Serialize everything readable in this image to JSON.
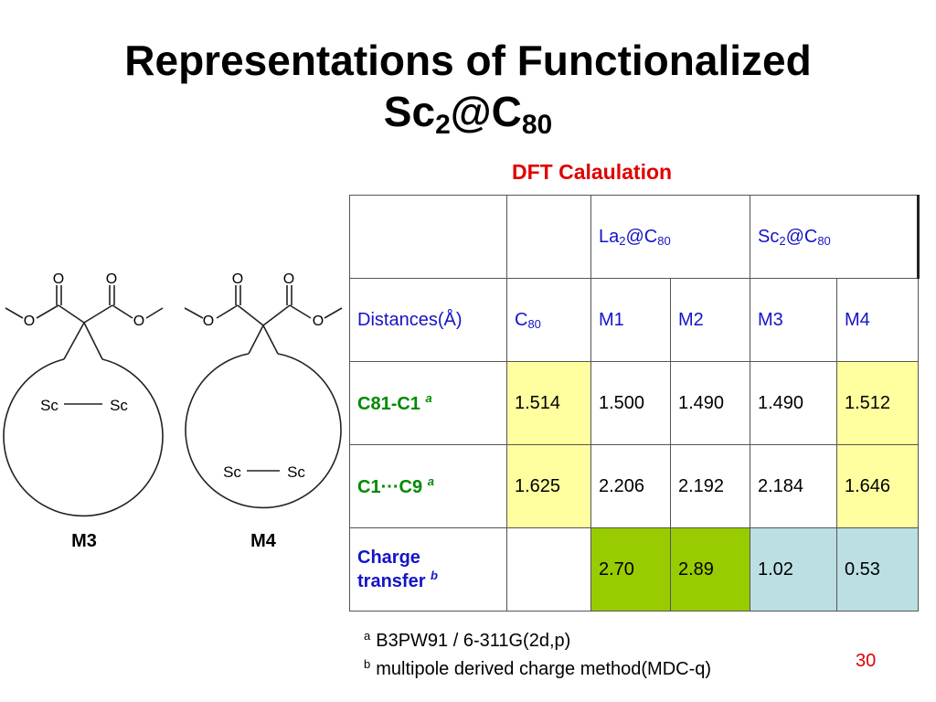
{
  "title": {
    "line1": "Representations of Functionalized",
    "line2_main": "Sc",
    "line2_sub1": "2",
    "line2_mid": "@C",
    "line2_sub2": "80"
  },
  "subtitle": "DFT Calaulation",
  "table": {
    "header_row": {
      "la_main": "La",
      "la_sub": "2",
      "la_at": "@C",
      "la_sub2": "80",
      "sc_main": "Sc",
      "sc_sub": "2",
      "sc_at": "@C",
      "sc_sub2": "80"
    },
    "second_row": {
      "label": "Distances(Å)",
      "c80_main": "C",
      "c80_sub": "80",
      "m1": "M1",
      "m2": "M2",
      "m3": "M3",
      "m4": "M4"
    },
    "rows": [
      {
        "label": "C81-C1",
        "sup": "a",
        "values": [
          "1.514",
          "1.500",
          "1.490",
          "1.490",
          "1.512"
        ]
      },
      {
        "label": "C1···C9",
        "sup": "a",
        "values": [
          "1.625",
          "2.206",
          "2.192",
          "2.184",
          "1.646"
        ]
      },
      {
        "label_line1": "Charge",
        "label_line2": "transfer",
        "sup": "b",
        "values": [
          "",
          "2.70",
          "2.89",
          "1.02",
          "0.53"
        ]
      }
    ]
  },
  "footnotes": [
    {
      "mark": "a",
      "text": "B3PW91 / 6-311G(2d,p)"
    },
    {
      "mark": "b",
      "text": "multipole derived charge method(MDC-q)"
    }
  ],
  "structures": {
    "m3": {
      "label": "M3",
      "atom_o": "O",
      "atom_sc": "Sc"
    },
    "m4": {
      "label": "M4",
      "atom_o": "O",
      "atom_sc": "Sc"
    }
  },
  "page_number": "30",
  "colors": {
    "title": "#000000",
    "subtitle": "#e00000",
    "header_text": "#1414c8",
    "row_label": "#008a00",
    "yellow_cell": "#ffffa0",
    "lime_cell": "#99cc00",
    "lightblue_cell": "#bcdfe3",
    "page_number": "#e00000"
  }
}
